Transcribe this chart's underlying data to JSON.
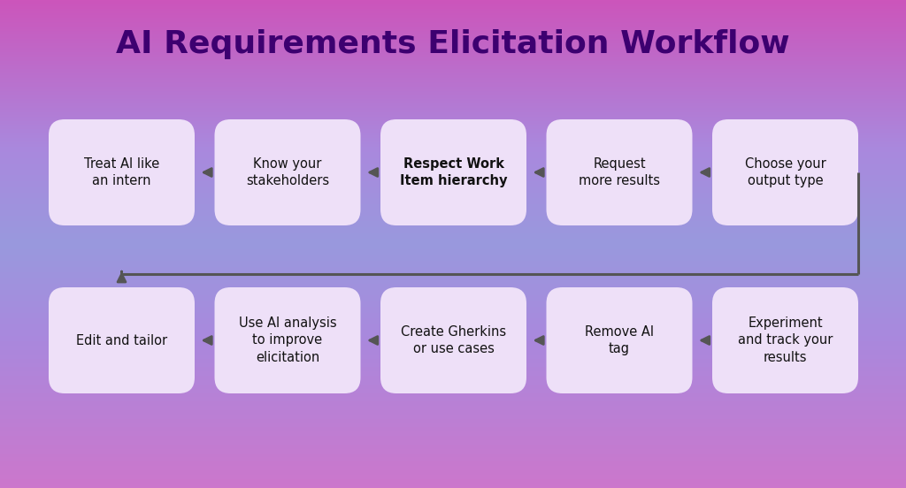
{
  "title": "AI Requirements Elicitation Workflow",
  "title_color": "#3D0070",
  "title_fontsize": 26,
  "title_fontweight": "bold",
  "box_color": "#EEE0F8",
  "box_edge_color": "#D8C8EE",
  "text_color": "#111111",
  "arrow_color": "#555555",
  "row1": [
    "Treat AI like\nan intern",
    "Know your\nstakeholders",
    "Respect Work\nItem hierarchy",
    "Request\nmore results",
    "Choose your\noutput type"
  ],
  "row1_bold": [
    2
  ],
  "row2": [
    "Edit and tailor",
    "Use AI analysis\nto improve\nelicitation",
    "Create Gherkins\nor use cases",
    "Remove AI\ntag",
    "Experiment\nand track your\nresults"
  ],
  "row2_bold": [],
  "figsize": [
    10.24,
    5.52
  ],
  "dpi": 100,
  "grad_colors": [
    "#CC66CC",
    "#AA88DD",
    "#9999CC",
    "#AA88DD",
    "#CC66CC"
  ],
  "grad_stops": [
    0.0,
    0.25,
    0.5,
    0.75,
    1.0
  ]
}
